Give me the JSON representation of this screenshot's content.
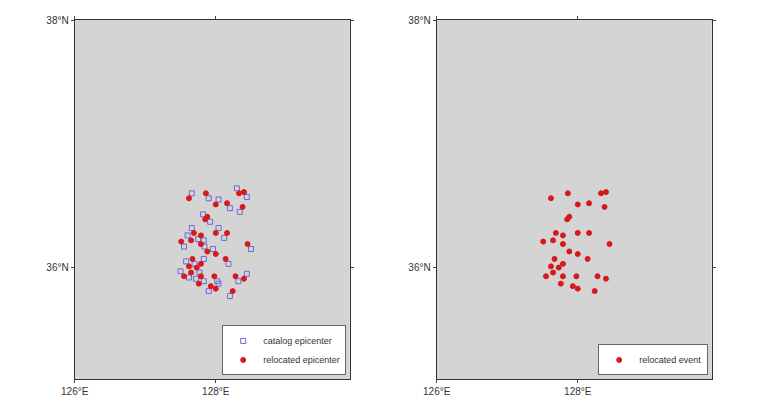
{
  "chart_data": [
    {
      "type": "scatter",
      "xlim": [
        126,
        129.9
      ],
      "ylim": [
        35.1,
        38
      ],
      "xticks": [
        {
          "value": 126,
          "label": "126°E"
        },
        {
          "value": 128,
          "label": "128°E"
        }
      ],
      "yticks": [
        {
          "value": 36,
          "label": "36°N"
        },
        {
          "value": 38,
          "label": "38°N"
        }
      ],
      "grid": false,
      "legend": "lower right",
      "series": [
        {
          "name": "catalog epicenter",
          "color": "#6a6ad8",
          "marker": "square-open",
          "x": [
            127.66,
            127.9,
            128.04,
            128.2,
            128.3,
            128.44,
            128.34,
            127.82,
            127.92,
            127.66,
            127.83,
            128.04,
            128.12,
            127.55,
            127.75,
            127.6,
            128.5,
            127.84,
            127.7,
            127.83,
            127.58,
            127.77,
            127.62,
            128.18,
            127.96,
            127.5,
            127.83,
            128.02,
            127.9,
            127.72,
            128.32,
            128.44,
            128.2,
            128.04
          ],
          "y": [
            36.6,
            36.56,
            36.55,
            36.48,
            36.64,
            36.57,
            36.45,
            36.43,
            36.37,
            36.32,
            36.22,
            36.32,
            36.24,
            36.17,
            36.23,
            36.26,
            36.15,
            36.17,
            36.03,
            36.07,
            36.05,
            35.96,
            35.92,
            36.03,
            36.15,
            35.97,
            35.89,
            35.89,
            35.81,
            35.91,
            35.89,
            35.95,
            35.77,
            35.87
          ]
        },
        {
          "name": "relocated epicenter",
          "color": "#d7191c",
          "marker": "circle",
          "x": [
            127.62,
            127.86,
            128.0,
            128.16,
            128.33,
            128.4,
            128.38,
            127.85,
            127.88,
            127.69,
            127.79,
            128.0,
            128.16,
            127.51,
            127.79,
            127.65,
            128.45,
            127.88,
            127.67,
            127.79,
            127.62,
            127.73,
            127.65,
            128.14,
            128.0,
            127.55,
            127.79,
            127.98,
            127.93,
            127.76,
            128.28,
            128.4,
            128.24,
            128.0
          ],
          "y": [
            36.56,
            36.6,
            36.51,
            36.52,
            36.6,
            36.61,
            36.49,
            36.39,
            36.41,
            36.28,
            36.26,
            36.28,
            36.28,
            36.21,
            36.19,
            36.22,
            36.19,
            36.13,
            36.07,
            36.03,
            36.01,
            36.0,
            35.96,
            36.07,
            36.11,
            35.93,
            35.93,
            35.93,
            35.85,
            35.87,
            35.93,
            35.91,
            35.81,
            35.83
          ]
        }
      ]
    },
    {
      "type": "scatter",
      "xlim": [
        126,
        129.9
      ],
      "ylim": [
        35.1,
        38
      ],
      "xticks": [
        {
          "value": 126,
          "label": "126°E"
        },
        {
          "value": 128,
          "label": "128°E"
        }
      ],
      "yticks": [
        {
          "value": 36,
          "label": "36°N"
        },
        {
          "value": 38,
          "label": "38°N"
        }
      ],
      "grid": false,
      "legend": "lower right",
      "series": [
        {
          "name": "relocated event",
          "color": "#d7191c",
          "marker": "circle",
          "x": [
            127.62,
            127.86,
            128.0,
            128.16,
            128.33,
            128.4,
            128.38,
            127.85,
            127.88,
            127.69,
            127.79,
            128.0,
            128.16,
            127.51,
            127.79,
            127.65,
            128.45,
            127.88,
            127.67,
            127.79,
            127.62,
            127.73,
            127.65,
            128.14,
            128.0,
            127.55,
            127.79,
            127.98,
            127.93,
            127.76,
            128.28,
            128.4,
            128.24,
            128.0
          ],
          "y": [
            36.56,
            36.6,
            36.51,
            36.52,
            36.6,
            36.61,
            36.49,
            36.39,
            36.41,
            36.28,
            36.26,
            36.28,
            36.28,
            36.21,
            36.19,
            36.22,
            36.19,
            36.13,
            36.07,
            36.03,
            36.01,
            36.0,
            35.96,
            36.07,
            36.11,
            35.93,
            35.93,
            35.93,
            35.85,
            35.87,
            35.93,
            35.91,
            35.81,
            35.83
          ]
        }
      ]
    }
  ]
}
